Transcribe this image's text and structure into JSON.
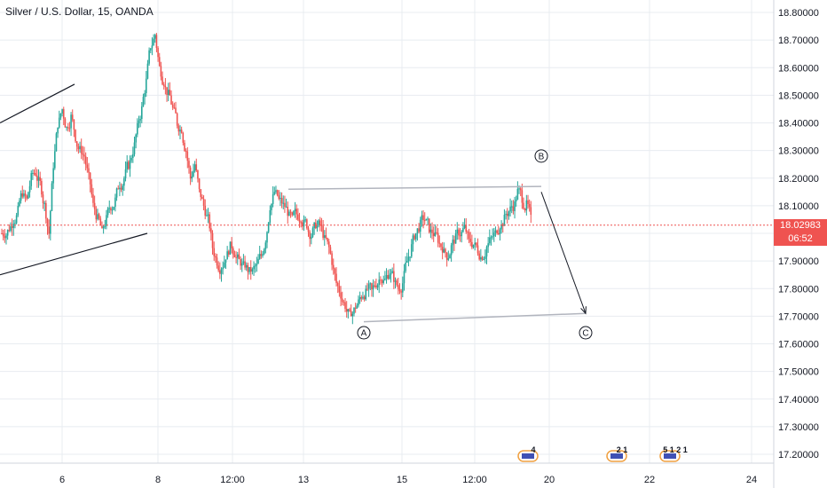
{
  "header": {
    "title": "Silver / U.S. Dollar, 15, OANDA"
  },
  "chart_data": {
    "type": "candlestick",
    "symbol_title": "Silver / U.S. Dollar, 15, OANDA",
    "ylim": [
      17.14,
      18.84
    ],
    "y_ticks": [
      "18.80000",
      "18.70000",
      "18.60000",
      "18.50000",
      "18.40000",
      "18.30000",
      "18.20000",
      "18.10000",
      "18.00000",
      "17.90000",
      "17.80000",
      "17.70000",
      "17.60000",
      "17.50000",
      "17.40000",
      "17.30000",
      "17.20000"
    ],
    "x_ticks": [
      "6",
      "8",
      "12:00",
      "13",
      "15",
      "12:00",
      "20",
      "22",
      "24"
    ],
    "grid": true,
    "current_price": {
      "value": 18.02983,
      "label": "18.02983",
      "countdown": "06:52"
    },
    "close_series": [
      18.0,
      18.02,
      18.05,
      18.08,
      18.15,
      18.12,
      18.2,
      18.22,
      18.18,
      18.1,
      18.0,
      18.25,
      18.4,
      18.45,
      18.38,
      18.42,
      18.35,
      18.3,
      18.28,
      18.2,
      18.1,
      18.05,
      18.0,
      18.05,
      18.1,
      18.12,
      18.18,
      18.2,
      18.25,
      18.3,
      18.38,
      18.45,
      18.55,
      18.68,
      18.72,
      18.6,
      18.55,
      18.5,
      18.45,
      18.4,
      18.38,
      18.3,
      18.2,
      18.25,
      18.15,
      18.1,
      18.05,
      17.95,
      17.9,
      17.88,
      17.92,
      17.95,
      17.93,
      17.9,
      17.88,
      17.87,
      17.86,
      17.88,
      17.92,
      17.98,
      18.1,
      18.15,
      18.12,
      18.1,
      18.08,
      18.05,
      18.07,
      18.06,
      18.04,
      18.0,
      18.02,
      18.03,
      18.0,
      17.96,
      17.9,
      17.82,
      17.78,
      17.74,
      17.7,
      17.72,
      17.75,
      17.78,
      17.8,
      17.79,
      17.82,
      17.85,
      17.83,
      17.86,
      17.84,
      17.8,
      17.82,
      17.9,
      17.95,
      18.0,
      18.03,
      18.05,
      18.02,
      18.0,
      17.98,
      17.95,
      17.92,
      17.95,
      17.98,
      18.0,
      18.02,
      17.97,
      17.96,
      17.94,
      17.92,
      17.95,
      17.98,
      18.0,
      18.03,
      18.05,
      18.08,
      18.1,
      18.15,
      18.13,
      18.1,
      18.05
    ],
    "trend_lines": [
      {
        "from": [
          "5 Oct",
          18.4
        ],
        "to": [
          "6 Oct",
          18.54
        ]
      },
      {
        "from": [
          "5 Oct",
          17.85
        ],
        "to": [
          "7 Oct",
          18.0
        ]
      }
    ],
    "channel_lines": [
      {
        "from": [
          "13",
          18.16
        ],
        "to": [
          "19",
          18.17
        ]
      },
      {
        "from": [
          "14",
          17.68
        ],
        "to": [
          "20",
          17.71
        ]
      }
    ],
    "arrow": {
      "from": [
        "19",
        18.15
      ],
      "to": [
        "20",
        17.71
      ]
    },
    "wave_labels": [
      {
        "label": "A",
        "at": [
          "14",
          17.64
        ]
      },
      {
        "label": "B",
        "at": [
          "19",
          18.28
        ]
      },
      {
        "label": "C",
        "at": [
          "20",
          17.64
        ]
      }
    ],
    "events": [
      {
        "count": "4",
        "at": "19"
      },
      {
        "count": "2 1",
        "at": "21"
      },
      {
        "count": "5 1 2 1",
        "at": "23"
      }
    ],
    "colors": {
      "up": "#26a69a",
      "down": "#ef5350",
      "price_line": "#ef5350",
      "grid": "#e8ecf1",
      "channel": "#b2b5be",
      "trend": "#131722"
    }
  }
}
